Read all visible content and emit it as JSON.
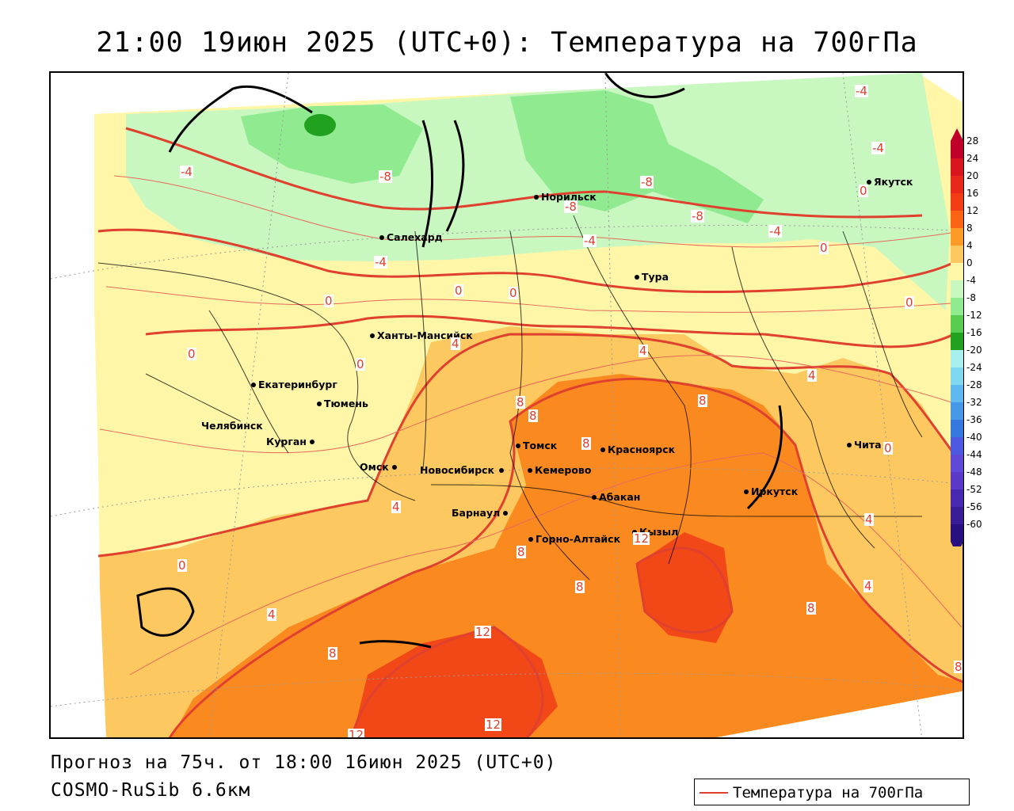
{
  "title": "21:00 19июн 2025 (UTC+0): Температура на 700гПа",
  "footer": {
    "forecast": "Прогноз на 75ч. от 18:00 16июн 2025 (UTC+0)",
    "model": "COSMO-RuSib 6.6км"
  },
  "legend": {
    "label": "Температура на 700гПа",
    "line_color": "#e0402e"
  },
  "colorbar": {
    "ticks": [
      "28",
      "24",
      "20",
      "16",
      "12",
      "8",
      "4",
      "0",
      "-4",
      "-8",
      "-12",
      "-16",
      "-20",
      "-24",
      "-28",
      "-32",
      "-36",
      "-40",
      "-44",
      "-48",
      "-52",
      "-56",
      "-60"
    ],
    "colors": [
      "#c0002a",
      "#d8141e",
      "#e8281a",
      "#f23c16",
      "#fa6414",
      "#fc9a28",
      "#fdc860",
      "#fff6a8",
      "#c8f7c0",
      "#90ea90",
      "#58cc50",
      "#22a020",
      "#a8f0f0",
      "#80d8f0",
      "#60b8f0",
      "#4898ea",
      "#3478e0",
      "#4c58e0",
      "#6048d8",
      "#5a38c8",
      "#4828b0",
      "#381c98",
      "#281080"
    ]
  },
  "cities": [
    {
      "name": "Норильск"
    },
    {
      "name": "Якутск"
    },
    {
      "name": "Салехард"
    },
    {
      "name": "Тура"
    },
    {
      "name": "Ханты-Мансийск"
    },
    {
      "name": "Екатеринбург"
    },
    {
      "name": "Тюмень"
    },
    {
      "name": "Челябинск"
    },
    {
      "name": "Курган"
    },
    {
      "name": "Омск"
    },
    {
      "name": "Томск"
    },
    {
      "name": "Красноярск"
    },
    {
      "name": "Новосибирск"
    },
    {
      "name": "Кемерово"
    },
    {
      "name": "Абакан"
    },
    {
      "name": "Барнаул"
    },
    {
      "name": "Иркутск"
    },
    {
      "name": "Чита"
    },
    {
      "name": "Кызыл"
    },
    {
      "name": "Горно-Алтайск"
    }
  ],
  "contour_labels": [
    "-4",
    "-8",
    "-8",
    "-4",
    "-8",
    "-4",
    "-8",
    "-4",
    "-4",
    "0",
    "0",
    "0",
    "0",
    "4",
    "0",
    "0",
    "0",
    "4",
    "0",
    "4",
    "8",
    "8",
    "8",
    "8",
    "4",
    "0",
    "4",
    "4",
    "8",
    "12",
    "8",
    "8",
    "12",
    "8",
    "8",
    "12",
    "12",
    "0",
    "4",
    "-4"
  ]
}
